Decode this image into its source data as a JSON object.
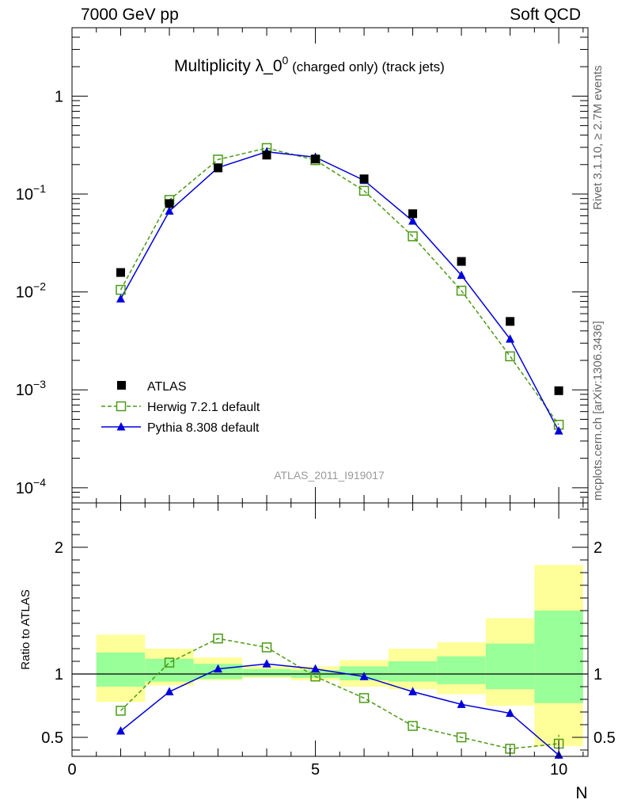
{
  "header": {
    "left": "7000 GeV pp",
    "right": "Soft QCD"
  },
  "side_labels": {
    "rivet": "Rivet 3.1.10, ≥ 2.7M events",
    "mcplots": "mcplots.cern.ch [arXiv:1306.3436]"
  },
  "title": {
    "main": "Multiplicity λ_0",
    "superscript": "0",
    "suffix": " (charged only) (track jets)"
  },
  "analysis_tag": "ATLAS_2011_I919017",
  "legend": {
    "atlas": "ATLAS",
    "herwig": "Herwig 7.2.1 default",
    "pythia": "Pythia 8.308 default"
  },
  "ratio_ylabel": "Ratio to ATLAS",
  "xlabel": "N",
  "colors": {
    "atlas": "#000000",
    "herwig": "#4a9a14",
    "pythia": "#0000dd",
    "band_inner": "#99ff99",
    "band_outer": "#ffff99"
  },
  "chart_data": [
    {
      "type": "scatter",
      "panel": "main",
      "log_y": true,
      "xlim": [
        0,
        10.6
      ],
      "ylim": [
        7e-05,
        5
      ],
      "y_ticks": [
        {
          "value": 1,
          "base": "1",
          "exp": ""
        },
        {
          "value": 0.1,
          "base": "10",
          "exp": "−1"
        },
        {
          "value": 0.01,
          "base": "10",
          "exp": "−2"
        },
        {
          "value": 0.001,
          "base": "10",
          "exp": "−3"
        },
        {
          "value": 0.0001,
          "base": "10",
          "exp": "−4"
        }
      ],
      "x": [
        1,
        2,
        3,
        4,
        5,
        6,
        7,
        8,
        9,
        10
      ],
      "series": [
        {
          "name": "ATLAS",
          "values": [
            0.0158,
            0.08,
            0.185,
            0.25,
            0.228,
            0.143,
            0.063,
            0.0205,
            0.005,
            0.00098
          ]
        },
        {
          "name": "Herwig 7.2.1 default",
          "values": [
            0.0105,
            0.087,
            0.225,
            0.295,
            0.222,
            0.108,
            0.037,
            0.0103,
            0.0022,
            0.00044
          ]
        },
        {
          "name": "Pythia 8.308 default",
          "values": [
            0.0085,
            0.067,
            0.186,
            0.27,
            0.238,
            0.138,
            0.053,
            0.0148,
            0.0033,
            0.00038
          ]
        }
      ]
    },
    {
      "type": "line",
      "panel": "ratio",
      "xlim": [
        0,
        10.6
      ],
      "ylim": [
        0.35,
        2.35
      ],
      "x_ticks": [
        0,
        5,
        10
      ],
      "y_ticks": [
        {
          "value": 0.5,
          "label": "0.5"
        },
        {
          "value": 1,
          "label": "1"
        },
        {
          "value": 2,
          "label": "2"
        }
      ],
      "x": [
        1,
        2,
        3,
        4,
        5,
        6,
        7,
        8,
        9,
        10
      ],
      "bands": {
        "outer_low": [
          0.78,
          0.91,
          0.95,
          0.97,
          0.95,
          0.9,
          0.88,
          0.84,
          0.75,
          0.43
        ],
        "outer_high": [
          1.31,
          1.2,
          1.13,
          1.06,
          1.06,
          1.11,
          1.2,
          1.25,
          1.44,
          1.86
        ],
        "inner_low": [
          0.9,
          0.94,
          0.96,
          0.98,
          0.97,
          0.95,
          0.94,
          0.92,
          0.88,
          0.77
        ],
        "inner_high": [
          1.17,
          1.12,
          1.08,
          1.04,
          1.03,
          1.06,
          1.1,
          1.14,
          1.24,
          1.5
        ]
      },
      "series": [
        {
          "name": "Herwig 7.2.1 default",
          "values": [
            0.71,
            1.09,
            1.28,
            1.21,
            0.98,
            0.81,
            0.59,
            0.5,
            0.41,
            0.45
          ],
          "err": [
            0.01,
            0.01,
            0.01,
            0.01,
            0.01,
            0.01,
            0.01,
            0.01,
            0.03,
            0.07
          ]
        },
        {
          "name": "Pythia 8.308 default",
          "values": [
            0.55,
            0.86,
            1.04,
            1.08,
            1.04,
            0.98,
            0.86,
            0.76,
            0.69,
            0.36
          ],
          "err": [
            0.01,
            0.01,
            0.01,
            0.01,
            0.01,
            0.01,
            0.01,
            0.01,
            0.03,
            0.03
          ]
        }
      ]
    }
  ]
}
